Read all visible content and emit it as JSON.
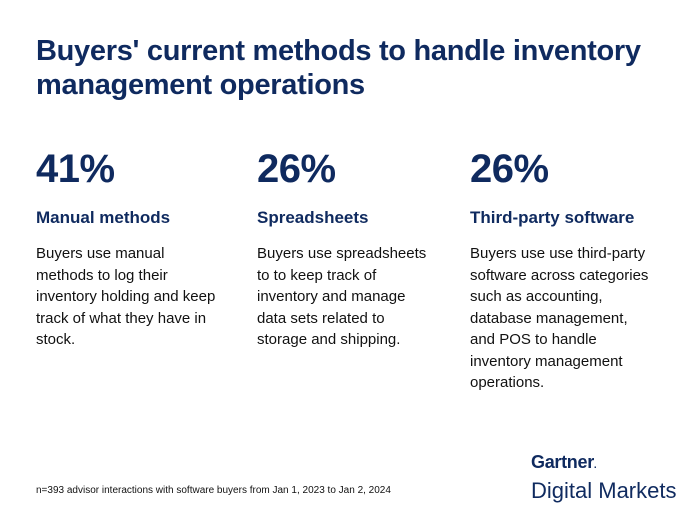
{
  "title": "Buyers' current methods to handle inventory management operations",
  "chart_data": {
    "type": "table",
    "title": "Buyers' current methods to handle inventory management operations",
    "unit": "%",
    "items": [
      {
        "value": 41,
        "value_label": "41%",
        "label": "Manual methods",
        "description": "Buyers use manual methods to log their inventory holding and keep track of what they have in stock."
      },
      {
        "value": 26,
        "value_label": "26%",
        "label": "Spreadsheets",
        "description": "Buyers use spreadsheets to to keep track of inventory and manage data sets related to storage and shipping."
      },
      {
        "value": 26,
        "value_label": "26%",
        "label": "Third-party software",
        "description": "Buyers use use third-party software across categories such as accounting, database management, and POS to handle inventory management operations."
      }
    ]
  },
  "footnote": "n=393 advisor interactions with software buyers from Jan 1, 2023 to Jan 2, 2024",
  "logo": {
    "brand": "Gartner",
    "brand_mark": ".",
    "product": "Digital Markets"
  }
}
